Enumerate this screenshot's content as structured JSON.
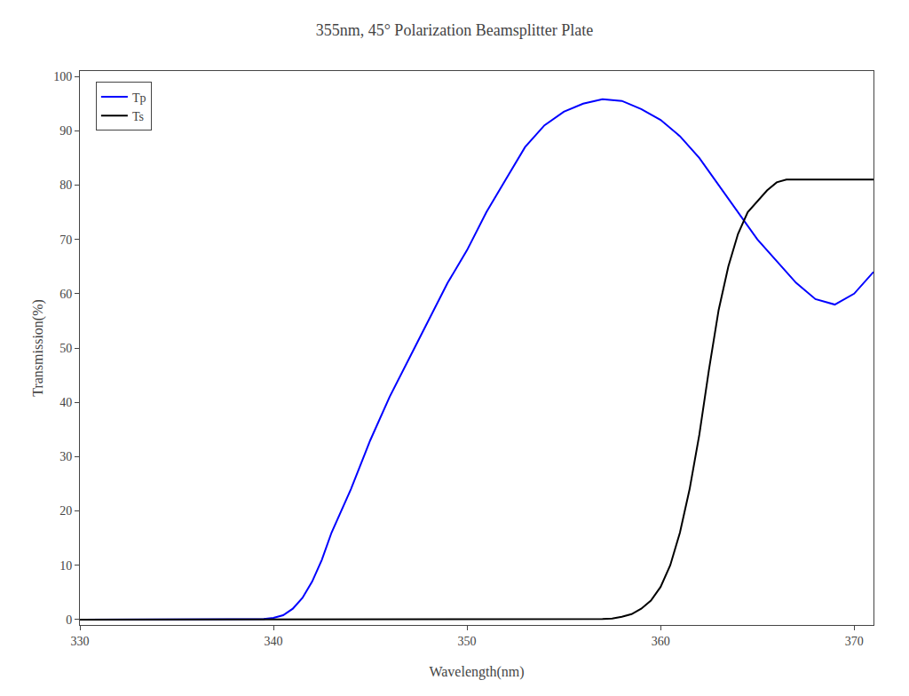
{
  "chart_data": {
    "type": "line",
    "title": "355nm, 45° Polarization Beamsplitter Plate",
    "x_label": "Wavelength(nm)",
    "y_label": "Transmission(%)",
    "xlim": [
      330,
      371
    ],
    "ylim": [
      -1,
      101
    ],
    "xticks": [
      330,
      340,
      350,
      360,
      370
    ],
    "yticks": [
      0,
      10,
      20,
      30,
      40,
      50,
      60,
      70,
      80,
      90,
      100
    ],
    "grid": false,
    "legend": "upper left",
    "series": [
      {
        "name": "Tp",
        "color": "#0000ff",
        "x": [
          330,
          333,
          335,
          337,
          338,
          339,
          339.5,
          340,
          340.5,
          341,
          341.5,
          342,
          342.5,
          343,
          344,
          345,
          346,
          347,
          348,
          349,
          350,
          351,
          352,
          353,
          354,
          355,
          356,
          357,
          358,
          359,
          360,
          361,
          362,
          363,
          364,
          365,
          366,
          367,
          368,
          369,
          370,
          371
        ],
        "values": [
          0,
          0,
          0,
          0,
          0,
          0,
          0.1,
          0.3,
          0.8,
          2,
          4,
          7,
          11,
          16,
          24,
          33,
          41,
          48,
          55,
          62,
          68,
          75,
          81,
          87,
          91,
          93.5,
          95,
          95.8,
          95.5,
          94,
          92,
          89,
          85,
          80,
          75,
          70,
          66,
          62,
          59,
          58,
          60,
          64
        ]
      },
      {
        "name": "Ts",
        "color": "#000000",
        "x": [
          330,
          340,
          350,
          354,
          356,
          357,
          357.5,
          358,
          358.5,
          359,
          359.5,
          360,
          360.5,
          361,
          361.5,
          362,
          362.5,
          363,
          363.5,
          364,
          364.5,
          365,
          365.5,
          366,
          366.5,
          367,
          367.5,
          368,
          368.5,
          369,
          370,
          371
        ],
        "values": [
          0,
          0,
          0,
          0,
          0,
          0.1,
          0.2,
          0.5,
          1,
          2,
          3.5,
          6,
          10,
          16,
          24,
          34,
          46,
          57,
          65,
          71,
          75,
          77,
          79,
          80.5,
          81,
          81,
          81,
          81,
          81,
          81,
          81,
          81
        ]
      }
    ]
  }
}
